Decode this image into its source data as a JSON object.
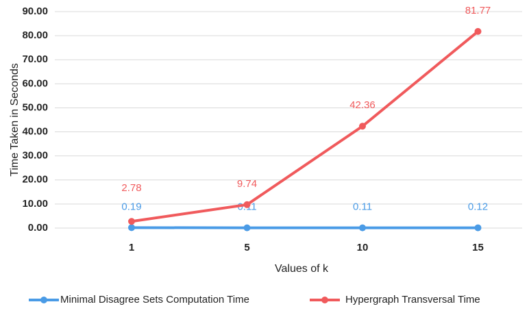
{
  "chart_data": {
    "type": "line",
    "y_label": "Time Taken in Seconds",
    "x_label": "Values of k",
    "categories": [
      "1",
      "5",
      "10",
      "15"
    ],
    "series": [
      {
        "name": "Minimal Disagree Sets Computation Time",
        "color": "#4a9be6",
        "values": [
          0.19,
          0.11,
          0.11,
          0.12
        ]
      },
      {
        "name": "Hypergraph Transversal Time",
        "color": "#f05a5c",
        "values": [
          2.78,
          9.74,
          42.36,
          81.77
        ]
      }
    ],
    "ylim": [
      0,
      90
    ],
    "yticks": [
      {
        "value": 0,
        "label": "0.00"
      },
      {
        "value": 10,
        "label": "10.00"
      },
      {
        "value": 20,
        "label": "20.00"
      },
      {
        "value": 30,
        "label": "30.00"
      },
      {
        "value": 40,
        "label": "40.00"
      },
      {
        "value": 50,
        "label": "50.00"
      },
      {
        "value": 60,
        "label": "60.00"
      },
      {
        "value": 70,
        "label": "70.00"
      },
      {
        "value": 80,
        "label": "80.00"
      },
      {
        "value": 90,
        "label": "90.00"
      }
    ],
    "grid": true,
    "legend": "bottom"
  }
}
